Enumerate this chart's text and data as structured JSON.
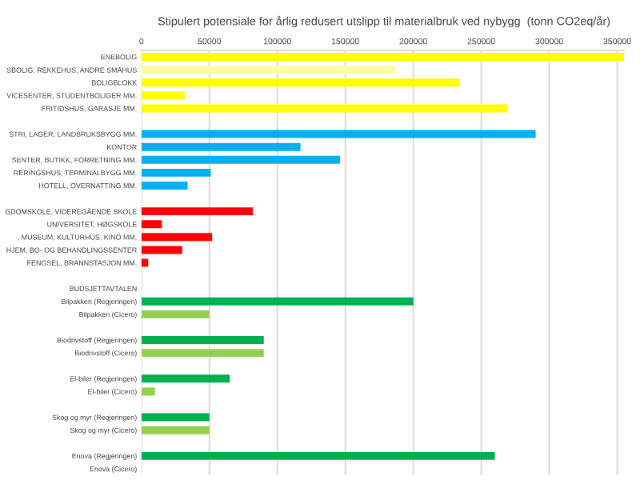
{
  "chart_data": {
    "type": "bar",
    "orientation": "horizontal",
    "title": "Stipulert potensiale for årlig redusert utslipp til materialbruk ved nybygg  (tonn CO2eq/år)",
    "categories": [
      "ENEBOLIG",
      "SBOLIG, REKKEHUS, ANDRE SMÅHUS",
      "BOLIGBLOKK",
      "VICESENTER, STUDENTBOLIGER MM.",
      "FRITIDSHUS, GARASJE MM.",
      null,
      "STRI, LAGER, LANDBRUKSBYGG MM.",
      "KONTOR",
      "SENTER, BUTIKK, FORRETNING MM.",
      "RERINGSHUS, TERMINALBYGG MM.",
      "HOTELL, OVERNATTING MM.",
      null,
      "GDOMSKOLE, VIDEREGÅENDE SKOLE",
      "UNIVERSITET, HØGSKOLE",
      ", MUSEUM, KULTURHUS, KINO MM.",
      "HJEM, BO- OG BEHANDLINGSSENTER",
      "FENGSEL, BRANNSTASJON MM.",
      null,
      "BUDSJETTAVTALEN",
      "Bilpakken (Regjeringen)",
      "Bilpakken (Cicero)",
      null,
      "Biodrivstoff (Regjeringen)",
      "Biodrivstoff (Cicero)",
      null,
      "El-biler (Regjeringen)",
      "El-biler (Cicero)",
      null,
      "Skog og myr (Regjeringen)",
      "Skog og myr (Cicero)",
      null,
      "Enova (Regjeringen)",
      "Enova (Cicero)"
    ],
    "values": [
      355000,
      187000,
      234000,
      32000,
      269000,
      null,
      290000,
      117000,
      146000,
      51000,
      34000,
      null,
      82000,
      15000,
      52000,
      30000,
      5000,
      null,
      null,
      200000,
      50000,
      null,
      90000,
      90000,
      null,
      65000,
      10000,
      null,
      50000,
      50000,
      null,
      260000,
      0
    ],
    "colors": [
      "#ffff00",
      "#ffff99",
      "#ffff00",
      "#ffff00",
      "#ffff00",
      null,
      "#00b0f0",
      "#00b0f0",
      "#00b0f0",
      "#00b0f0",
      "#00b0f0",
      null,
      "#ff0000",
      "#ff0000",
      "#ff0000",
      "#ff0000",
      "#ff0000",
      null,
      null,
      "#00b050",
      "#92d050",
      null,
      "#00b050",
      "#92d050",
      null,
      "#00b050",
      "#92d050",
      null,
      "#00b050",
      "#92d050",
      null,
      "#00b050",
      "#92d050"
    ],
    "xlim": [
      0,
      355000
    ],
    "xticks": [
      0,
      50000,
      100000,
      150000,
      200000,
      250000,
      300000,
      350000
    ],
    "grid": "x"
  }
}
